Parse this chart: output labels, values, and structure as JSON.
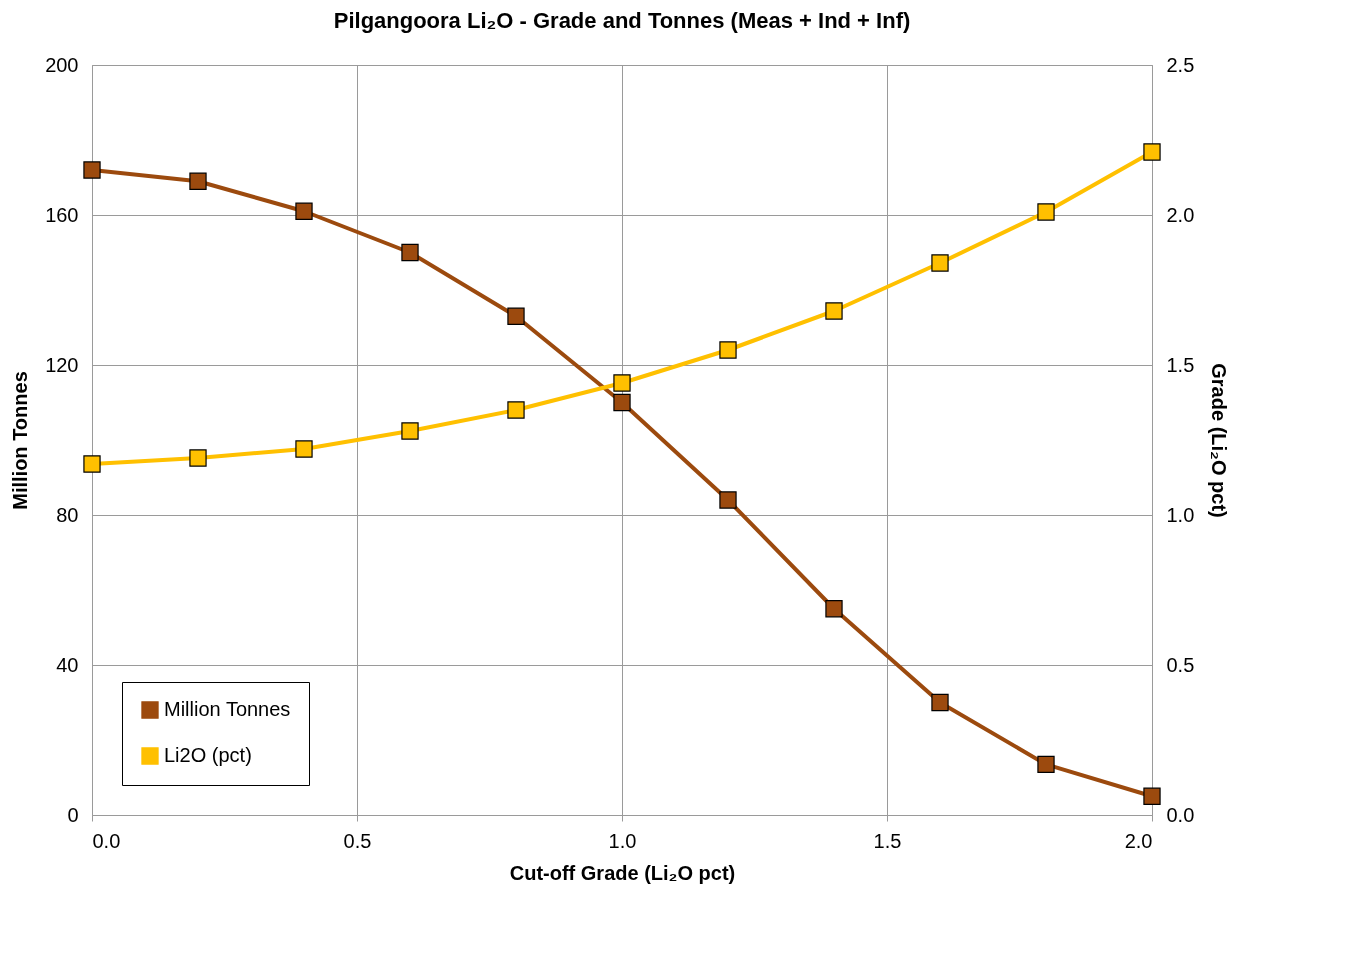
{
  "chart_data": {
    "type": "line",
    "title": "Pilgangoora Li₂O - Grade and Tonnes (Meas + Ind + Inf)",
    "xlabel": "Cut-off Grade (Li₂O pct)",
    "ylabel": "Million Tonnes",
    "y2label": "Grade (Li₂O pct)",
    "x": [
      0.0,
      0.2,
      0.4,
      0.6,
      0.8,
      1.0,
      1.2,
      1.4,
      1.6,
      1.8,
      2.0
    ],
    "series": [
      {
        "name": "Million Tonnes",
        "color": "#9c4a0e",
        "values": [
          172,
          169,
          161,
          150,
          133,
          110,
          84,
          55,
          30,
          13.5,
          5
        ]
      },
      {
        "name": "Li2O (pct)",
        "color": "#ffc000",
        "axis": "y2",
        "values": [
          1.17,
          1.19,
          1.22,
          1.28,
          1.35,
          1.44,
          1.55,
          1.68,
          1.84,
          2.01,
          2.21
        ]
      }
    ],
    "xlim": [
      0,
      2
    ],
    "xticks": [
      {
        "value": 0,
        "label": "0.0"
      },
      {
        "value": 0.5,
        "label": "0.5"
      },
      {
        "value": 1,
        "label": "1.0"
      },
      {
        "value": 1.5,
        "label": "1.5"
      },
      {
        "value": 2,
        "label": "2.0"
      }
    ],
    "ylim": [
      0,
      200
    ],
    "yticks": [
      0,
      40,
      80,
      120,
      160,
      200
    ],
    "y2lim": [
      0,
      2.5
    ],
    "y2ticks": [
      {
        "value": 0,
        "label": "0.0"
      },
      {
        "value": 0.5,
        "label": "0.5"
      },
      {
        "value": 1,
        "label": "1.0"
      },
      {
        "value": 1.5,
        "label": "1.5"
      },
      {
        "value": 2,
        "label": "2.0"
      },
      {
        "value": 2.5,
        "label": "2.5"
      }
    ],
    "grid": true,
    "legend": "bottom left",
    "marker": "square",
    "line_style": "solid"
  }
}
